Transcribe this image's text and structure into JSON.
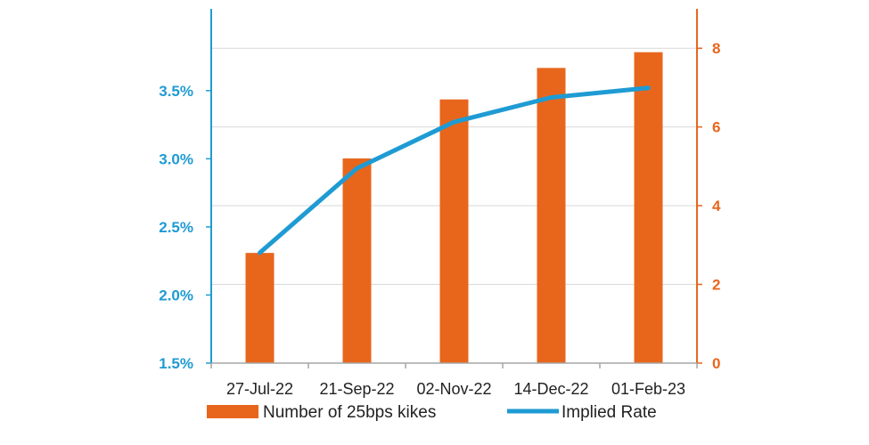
{
  "chart_data": {
    "type": "bar",
    "categories": [
      "27-Jul-22",
      "21-Sep-22",
      "02-Nov-22",
      "14-Dec-22",
      "01-Feb-23"
    ],
    "series": [
      {
        "name": "Number of 25bps kikes",
        "type": "bar",
        "axis": "right",
        "color": "#e8661c",
        "values": [
          2.8,
          5.2,
          6.7,
          7.5,
          7.9
        ]
      },
      {
        "name": "Implied Rate",
        "type": "line",
        "axis": "left",
        "color": "#1f9bd3",
        "values": [
          2.31,
          2.93,
          3.27,
          3.45,
          3.52
        ]
      }
    ],
    "y_left": {
      "ylim": [
        1.5,
        4.1
      ],
      "ticks": [
        1.5,
        2.0,
        2.5,
        3.0,
        3.5
      ],
      "tick_labels": [
        "1.5%",
        "2.0%",
        "2.5%",
        "3.0%",
        "3.5%"
      ],
      "color": "#1f9bd3"
    },
    "y_right": {
      "ylim": [
        0,
        9
      ],
      "ticks": [
        0,
        2,
        4,
        6,
        8
      ],
      "tick_labels": [
        "0",
        "2",
        "4",
        "6",
        "8"
      ],
      "color": "#e8661c"
    },
    "grid": true,
    "legend_position": "bottom",
    "title": "",
    "xlabel": "",
    "ylabel": ""
  }
}
